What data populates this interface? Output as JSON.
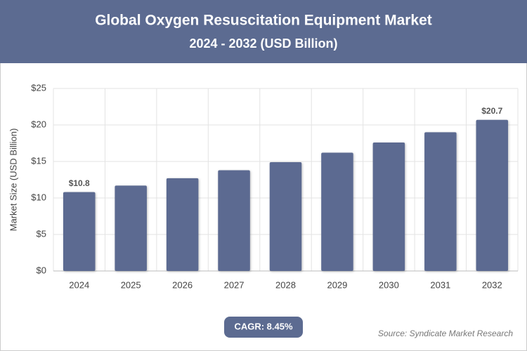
{
  "chart_data": {
    "type": "bar",
    "title": "Global Oxygen Resuscitation Equipment Market",
    "subtitle": "2024 - 2032 (USD Billion)",
    "y_label": "Market Size (USD Billion)",
    "categories": [
      "2024",
      "2025",
      "2026",
      "2027",
      "2028",
      "2029",
      "2030",
      "2031",
      "2032"
    ],
    "values": [
      10.8,
      11.7,
      12.7,
      13.8,
      14.9,
      16.2,
      17.6,
      19.0,
      20.7
    ],
    "value_labels": [
      "$10.8",
      null,
      null,
      null,
      null,
      null,
      null,
      null,
      "$20.7"
    ],
    "color": "#5c6b91",
    "ylim": [
      0,
      25
    ],
    "yticks": [
      {
        "value": 0,
        "label": "$0"
      },
      {
        "value": 5,
        "label": "$5"
      },
      {
        "value": 10,
        "label": "$10"
      },
      {
        "value": 15,
        "label": "$15"
      },
      {
        "value": 20,
        "label": "$20"
      },
      {
        "value": 25,
        "label": "$25"
      }
    ],
    "grid": true,
    "cagr": "CAGR: 8.45%",
    "source": "Source: Syndicate Market Research"
  }
}
